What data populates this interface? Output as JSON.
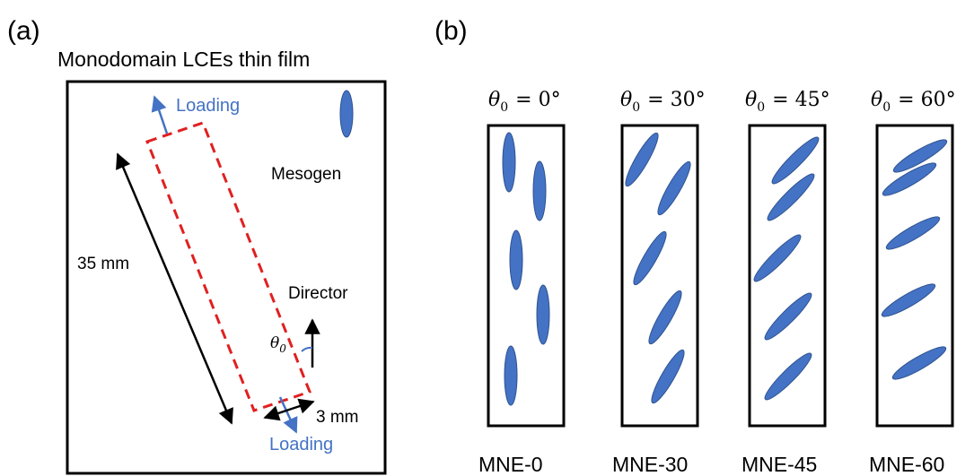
{
  "panel_a": {
    "label": "(a)",
    "title": "Monodomain LCEs thin film",
    "loading_top": "Loading",
    "loading_bottom": "Loading",
    "mesogen": "Mesogen",
    "director": "Director",
    "length": "35 mm",
    "width": "3 mm",
    "theta": "θ",
    "theta_sub": "0",
    "colors": {
      "loading": "#4472C4",
      "mesogen": "#4472C4",
      "specimen_outline": "#E02020"
    }
  },
  "panel_b": {
    "label": "(b)",
    "samples": [
      {
        "theta_sym": "θ",
        "theta_sub": "0",
        "equation": "= 0°",
        "name": "MNE-0",
        "angle_deg": 0
      },
      {
        "theta_sym": "θ",
        "theta_sub": "0",
        "equation": "= 30°",
        "name": "MNE-30",
        "angle_deg": 30
      },
      {
        "theta_sym": "θ",
        "theta_sub": "0",
        "equation": "= 45°",
        "name": "MNE-45",
        "angle_deg": 45
      },
      {
        "theta_sym": "θ",
        "theta_sub": "0",
        "equation": "= 60°",
        "name": "MNE-60",
        "angle_deg": 60
      }
    ]
  }
}
